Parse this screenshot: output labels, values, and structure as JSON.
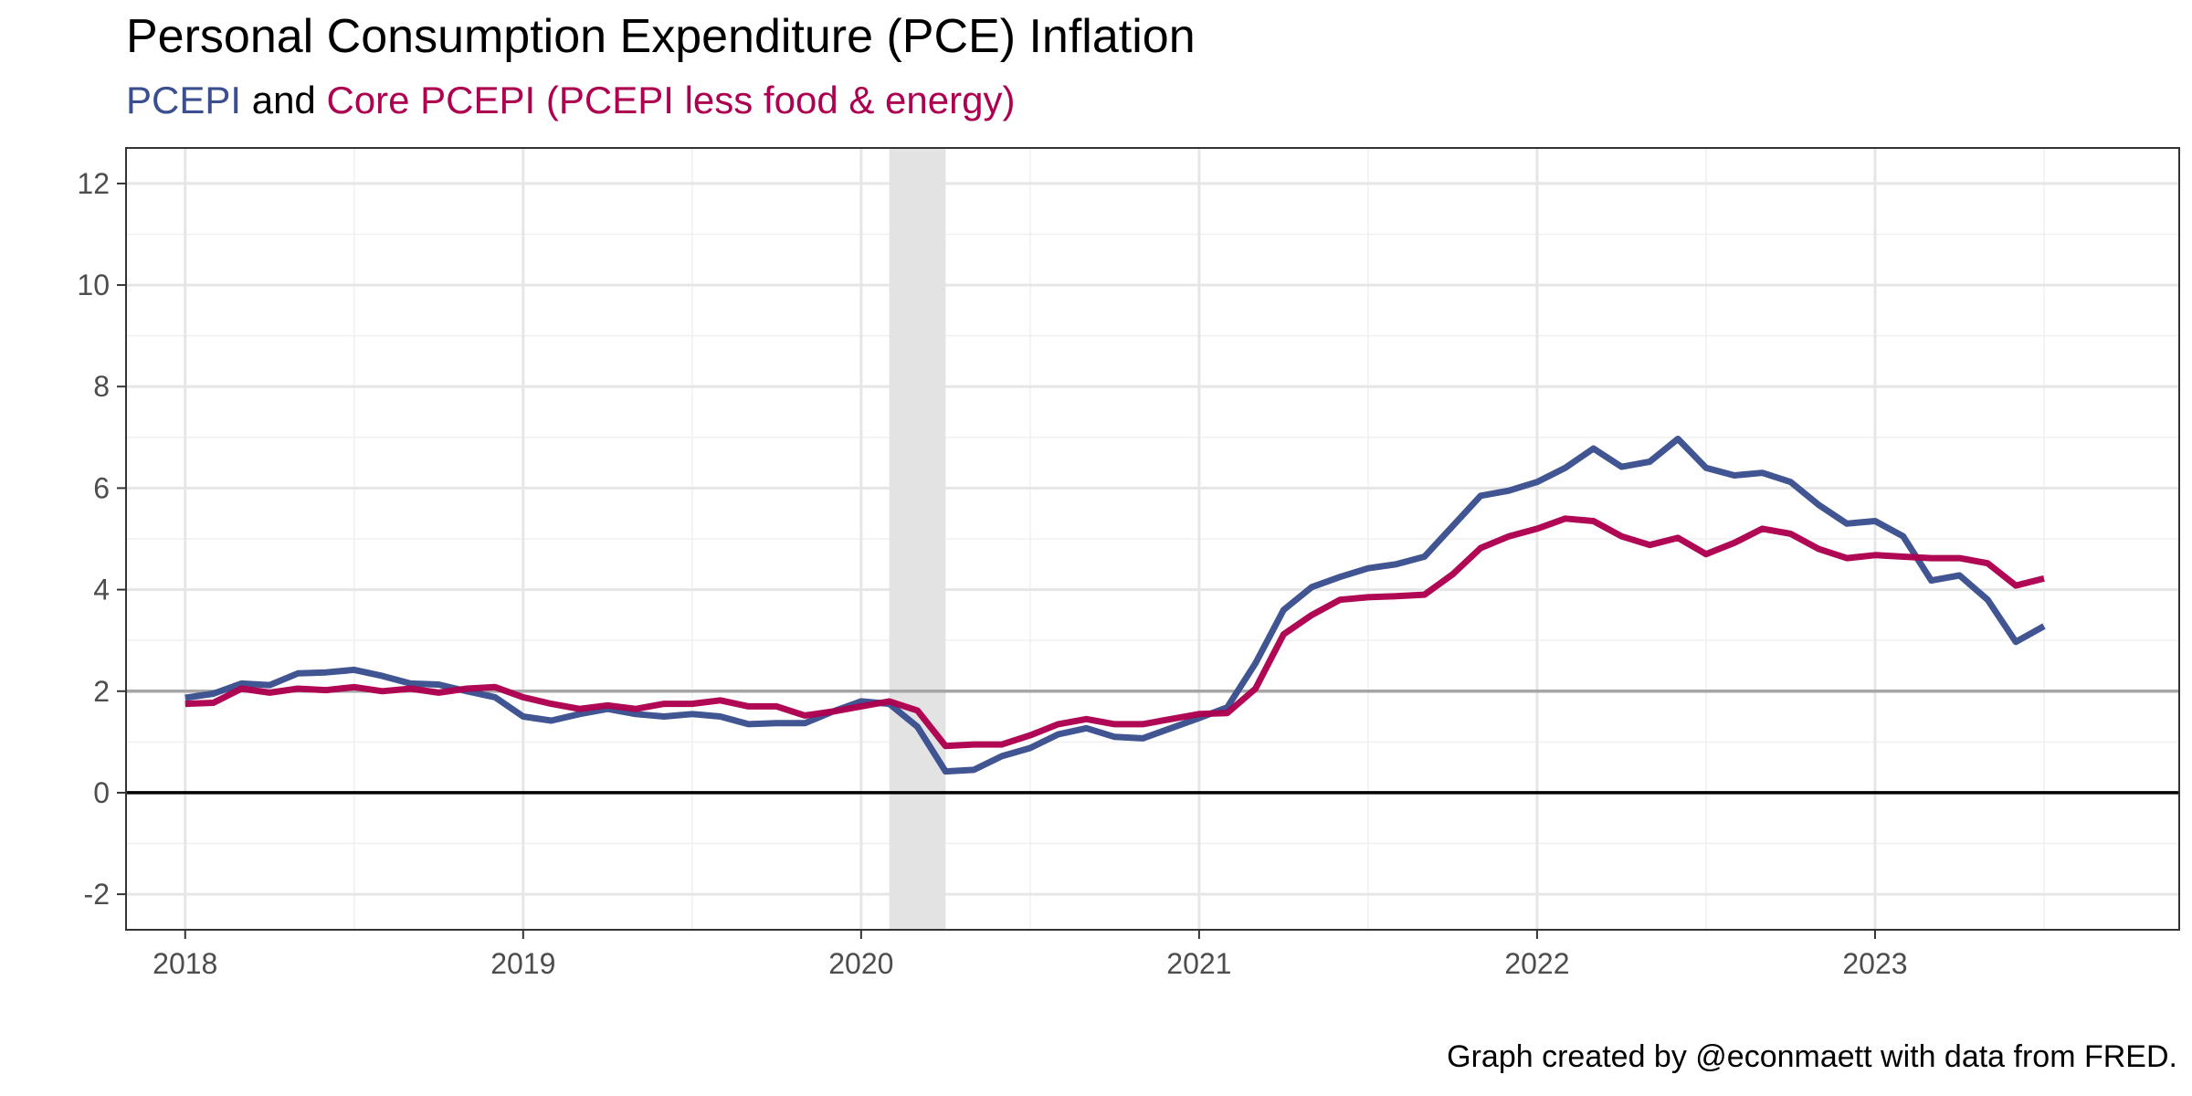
{
  "chart_data": {
    "type": "line",
    "title": "Personal Consumption Expenditure (PCE) Inflation",
    "subtitle": {
      "part1": "PCEPI",
      "part2": "and",
      "part3": "Core PCEPI (PCEPI less food & energy)"
    },
    "caption": "Graph created by @econmaett with data from FRED.",
    "x_start": "2018-01",
    "xlim": [
      -2.1,
      70.8
    ],
    "ylim": [
      -2.7,
      12.7
    ],
    "x_ticks": [
      {
        "label": "2018",
        "month_index": 0
      },
      {
        "label": "2019",
        "month_index": 12
      },
      {
        "label": "2020",
        "month_index": 24
      },
      {
        "label": "2021",
        "month_index": 36
      },
      {
        "label": "2022",
        "month_index": 48
      },
      {
        "label": "2023",
        "month_index": 60
      }
    ],
    "y_ticks": [
      -2,
      0,
      2,
      4,
      6,
      8,
      10,
      12
    ],
    "reference_lines": [
      {
        "y": 0,
        "color": "#000000"
      },
      {
        "y": 2,
        "color": "#a6a6a6"
      }
    ],
    "recession": {
      "start": "2020-02",
      "end": "2020-04",
      "color": "#e3e3e3"
    },
    "grid": true,
    "series": [
      {
        "name": "PCEPI",
        "color": "#3b4f8f",
        "values": [
          1.87,
          1.95,
          2.15,
          2.12,
          2.35,
          2.37,
          2.42,
          2.3,
          2.15,
          2.13,
          2.0,
          1.88,
          1.5,
          1.42,
          1.55,
          1.65,
          1.55,
          1.5,
          1.55,
          1.5,
          1.35,
          1.37,
          1.37,
          1.6,
          1.8,
          1.75,
          1.3,
          0.42,
          0.45,
          0.72,
          0.88,
          1.15,
          1.27,
          1.1,
          1.07,
          1.27,
          1.47,
          1.68,
          2.55,
          3.6,
          4.05,
          4.25,
          4.42,
          4.5,
          4.65,
          5.25,
          5.85,
          5.95,
          6.12,
          6.4,
          6.78,
          6.42,
          6.52,
          6.97,
          6.4,
          6.25,
          6.3,
          6.12,
          5.67,
          5.3,
          5.35,
          5.05,
          4.18,
          4.28,
          3.8,
          2.97,
          3.28
        ]
      },
      {
        "name": "Core PCEPI",
        "color": "#ad0050",
        "values": [
          1.75,
          1.77,
          2.05,
          1.97,
          2.05,
          2.02,
          2.08,
          2.0,
          2.05,
          1.97,
          2.05,
          2.08,
          1.88,
          1.75,
          1.65,
          1.72,
          1.65,
          1.75,
          1.75,
          1.82,
          1.7,
          1.7,
          1.52,
          1.6,
          1.7,
          1.8,
          1.62,
          0.92,
          0.95,
          0.95,
          1.13,
          1.35,
          1.45,
          1.35,
          1.35,
          1.45,
          1.55,
          1.57,
          2.05,
          3.12,
          3.5,
          3.8,
          3.85,
          3.87,
          3.9,
          4.3,
          4.82,
          5.05,
          5.2,
          5.4,
          5.35,
          5.05,
          4.88,
          5.02,
          4.7,
          4.92,
          5.2,
          5.1,
          4.8,
          4.62,
          4.68,
          4.65,
          4.62,
          4.62,
          4.52,
          4.08,
          4.22
        ]
      }
    ]
  }
}
